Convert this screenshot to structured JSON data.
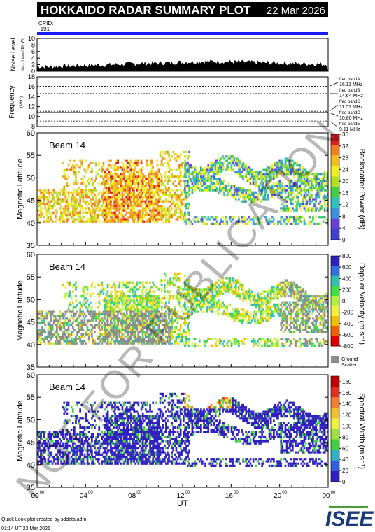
{
  "header": {
    "title": "HOKKAIDO RADAR SUMMARY PLOT",
    "date": "22 Mar 2026",
    "cpid_label": "CPID:",
    "cpid_value": "-191"
  },
  "footer": {
    "credit": "Quick Look plot created by sddata.adm",
    "created": "01:14 UT 23 Mar 2026",
    "logo_text": "ISEE"
  },
  "watermark": "NOT FOR PUBLICATION",
  "colors": {
    "cpid_bar": "#1a1aff",
    "ground_scatter": "#8c8c8c",
    "banner_bg": "#000000",
    "banner_fg": "#ffffff"
  },
  "chart_data": [
    {
      "type": "area",
      "id": "noise",
      "ylabel": "Noise Level",
      "ylabel_sub": "log₁₀ (noise / 10⁶ W)",
      "ylim": [
        0,
        10
      ],
      "yticks": [
        "0",
        "2",
        "4",
        "6",
        "8",
        "10"
      ],
      "x_hours": [
        0,
        1,
        2,
        3,
        4,
        5,
        6,
        7,
        8,
        9,
        10,
        11,
        12,
        13,
        14,
        15,
        16,
        17,
        18,
        19,
        20,
        21,
        22,
        23,
        24
      ],
      "values": [
        1.5,
        1.4,
        1.6,
        1.7,
        1.8,
        1.9,
        2.0,
        2.2,
        2.3,
        2.4,
        2.5,
        2.6,
        2.8,
        2.9,
        3.0,
        3.0,
        2.9,
        2.8,
        2.7,
        2.6,
        2.5,
        2.4,
        2.3,
        2.2,
        2.1
      ]
    },
    {
      "type": "line",
      "id": "frequency",
      "ylabel": "Frequency",
      "ylabel_sub": "(MHz)",
      "ylim": [
        8,
        18
      ],
      "yticks": [
        "8",
        "10",
        "12",
        "14",
        "16",
        "18"
      ],
      "freq_bands": [
        {
          "label": "freq bandA",
          "value": "16.11 MHz",
          "mhz": 16.11
        },
        {
          "label": "freq bandB",
          "value": "14.64 MHz",
          "mhz": 14.64
        },
        {
          "label": "freq bandC",
          "value": "11.07 MHz",
          "mhz": 11.07
        },
        {
          "label": "freq bandD",
          "value": "10.80 MHz",
          "mhz": 10.8
        },
        {
          "label": "freq bandE",
          "value": "9.11 MHz",
          "mhz": 9.11
        }
      ],
      "operating_mhz": 10.8
    },
    {
      "type": "heatmap",
      "id": "power",
      "beam_label": "Beam 14",
      "ylabel": "Magnetic Latitude",
      "ylim": [
        35,
        60
      ],
      "yticks": [
        "35",
        "40",
        "45",
        "50",
        "55",
        "60"
      ],
      "colorbar": {
        "label": "Backscatter Power (dB)",
        "range": [
          0,
          36
        ],
        "ticks": [
          "0",
          "4",
          "8",
          "12",
          "16",
          "20",
          "24",
          "28",
          "32",
          "36"
        ]
      }
    },
    {
      "type": "heatmap",
      "id": "velocity",
      "beam_label": "Beam 14",
      "ylabel": "Magnetic Latitude",
      "ylim": [
        35,
        60
      ],
      "yticks": [
        "35",
        "40",
        "45",
        "50",
        "55",
        "60"
      ],
      "colorbar": {
        "label": "Doppler Velocity (m s⁻¹)",
        "range": [
          -800,
          800
        ],
        "ticks": [
          "-800",
          "-600",
          "-400",
          "-200",
          "0",
          "200",
          "400",
          "600",
          "800"
        ],
        "extra_label_1": "Ground",
        "extra_label_2": "Scatter"
      }
    },
    {
      "type": "heatmap",
      "id": "width",
      "beam_label": "Beam 14",
      "ylabel": "Magnetic Latitude",
      "ylim": [
        35,
        60
      ],
      "yticks": [
        "35",
        "40",
        "45",
        "50",
        "55",
        "60"
      ],
      "xlabel": "UT",
      "xticks": [
        {
          "hour": 0,
          "text": "00",
          "sup": "00"
        },
        {
          "hour": 4,
          "text": "04",
          "sup": "00"
        },
        {
          "hour": 8,
          "text": "08",
          "sup": "00"
        },
        {
          "hour": 12,
          "text": "12",
          "sup": "00"
        },
        {
          "hour": 16,
          "text": "16",
          "sup": "00"
        },
        {
          "hour": 20,
          "text": "20",
          "sup": "00"
        },
        {
          "hour": 24,
          "text": "00",
          "sup": "00"
        }
      ],
      "colorbar": {
        "label": "Spectral Width (m s⁻¹)",
        "range": [
          0,
          190
        ],
        "ticks": [
          "0",
          "20",
          "40",
          "60",
          "80",
          "100",
          "120",
          "140",
          "160",
          "180"
        ]
      }
    }
  ]
}
